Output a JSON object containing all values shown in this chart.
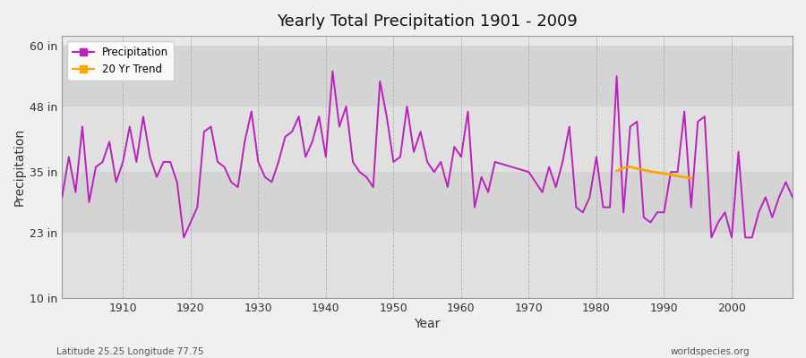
{
  "title": "Yearly Total Precipitation 1901 - 2009",
  "xlabel": "Year",
  "ylabel": "Precipitation",
  "fig_bg": "#f0f0f0",
  "plot_bg": "#e8e8e8",
  "band1_color": "#e8e8e8",
  "band2_color": "#d8d8d8",
  "precip_color": "#bb22bb",
  "trend_color": "#ffa500",
  "ylim": [
    10,
    62
  ],
  "xlim": [
    1901,
    2009
  ],
  "yticks": [
    10,
    23,
    35,
    48,
    60
  ],
  "ytick_labels": [
    "10 in",
    "23 in",
    "35 in",
    "48 in",
    "60 in"
  ],
  "xticks": [
    1910,
    1920,
    1930,
    1940,
    1950,
    1960,
    1970,
    1980,
    1990,
    2000
  ],
  "start_year": 1901,
  "note_left": "Latitude 25.25 Longitude 77.75",
  "note_right": "worldspecies.org",
  "precipitation_years": [
    1901,
    1902,
    1903,
    1904,
    1905,
    1906,
    1907,
    1908,
    1909,
    1910,
    1911,
    1912,
    1913,
    1914,
    1915,
    1916,
    1917,
    1918,
    1919,
    1920,
    1921,
    1922,
    1923,
    1924,
    1925,
    1926,
    1927,
    1928,
    1929,
    1930,
    1931,
    1932,
    1933,
    1934,
    1935,
    1936,
    1937,
    1938,
    1939,
    1940,
    1941,
    1942,
    1943,
    1944,
    1945,
    1946,
    1947,
    1948,
    1949,
    1950,
    1951,
    1952,
    1953,
    1954,
    1955,
    1956,
    1957,
    1958,
    1959,
    1960,
    1961,
    1962,
    1963,
    1964,
    1965,
    1970,
    1971,
    1972,
    1973,
    1974,
    1975,
    1976,
    1977,
    1978,
    1979,
    1980,
    1981,
    1982,
    1983,
    1984,
    1985,
    1986,
    1987,
    1988,
    1989,
    1990,
    1991,
    1992,
    1993,
    1994,
    1995,
    1996,
    1997,
    1998,
    1999,
    2000,
    2001,
    2002,
    2003,
    2004,
    2005,
    2006,
    2007,
    2008,
    2009
  ],
  "precipitation": [
    30,
    38,
    31,
    44,
    29,
    36,
    37,
    41,
    33,
    37,
    44,
    37,
    46,
    38,
    34,
    37,
    37,
    33,
    22,
    25,
    28,
    43,
    44,
    37,
    36,
    33,
    32,
    41,
    47,
    37,
    34,
    33,
    37,
    42,
    43,
    46,
    38,
    41,
    46,
    38,
    55,
    44,
    48,
    37,
    35,
    34,
    32,
    53,
    46,
    37,
    38,
    48,
    39,
    43,
    37,
    35,
    37,
    32,
    40,
    38,
    47,
    28,
    34,
    31,
    37,
    35,
    33,
    31,
    36,
    32,
    37,
    44,
    28,
    27,
    30,
    38,
    28,
    28,
    54,
    27,
    44,
    45,
    26,
    25,
    27,
    27,
    35,
    35,
    47,
    28,
    45,
    46,
    22,
    25,
    27,
    22,
    39,
    22,
    22,
    27,
    30,
    26,
    30,
    33,
    30
  ],
  "trend_start_year": 1983,
  "trend_values": [
    35.2,
    35.8,
    36.0,
    35.7,
    35.4,
    35.1,
    34.9,
    34.7,
    34.5,
    34.2,
    34.0,
    33.8
  ]
}
